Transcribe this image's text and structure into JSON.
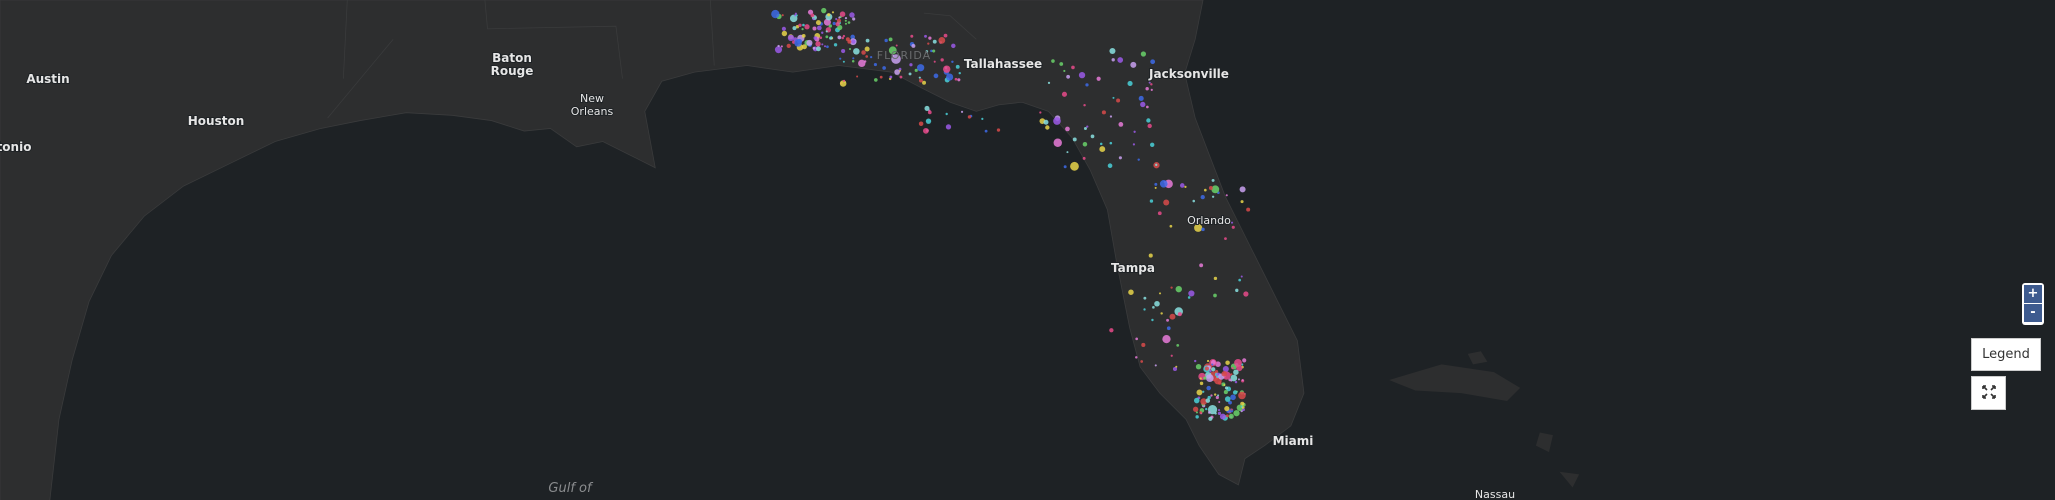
{
  "map": {
    "places": {
      "austin": "Austin",
      "houston": "Houston",
      "san_antonio": "tonio",
      "baton_rouge": [
        "Baton",
        "Rouge"
      ],
      "new_orleans": [
        "New",
        "Orleans"
      ],
      "florida": "FLORIDA",
      "tallahassee": "Tallahassee",
      "jacksonville": "Jacksonville",
      "orlando": "Orlando",
      "tampa": "Tampa",
      "miami": "Miami",
      "nassau": "Nassau",
      "gulf": "Gulf of"
    }
  },
  "controls": {
    "zoom_in": "+",
    "zoom_out": "-",
    "legend": "Legend"
  }
}
